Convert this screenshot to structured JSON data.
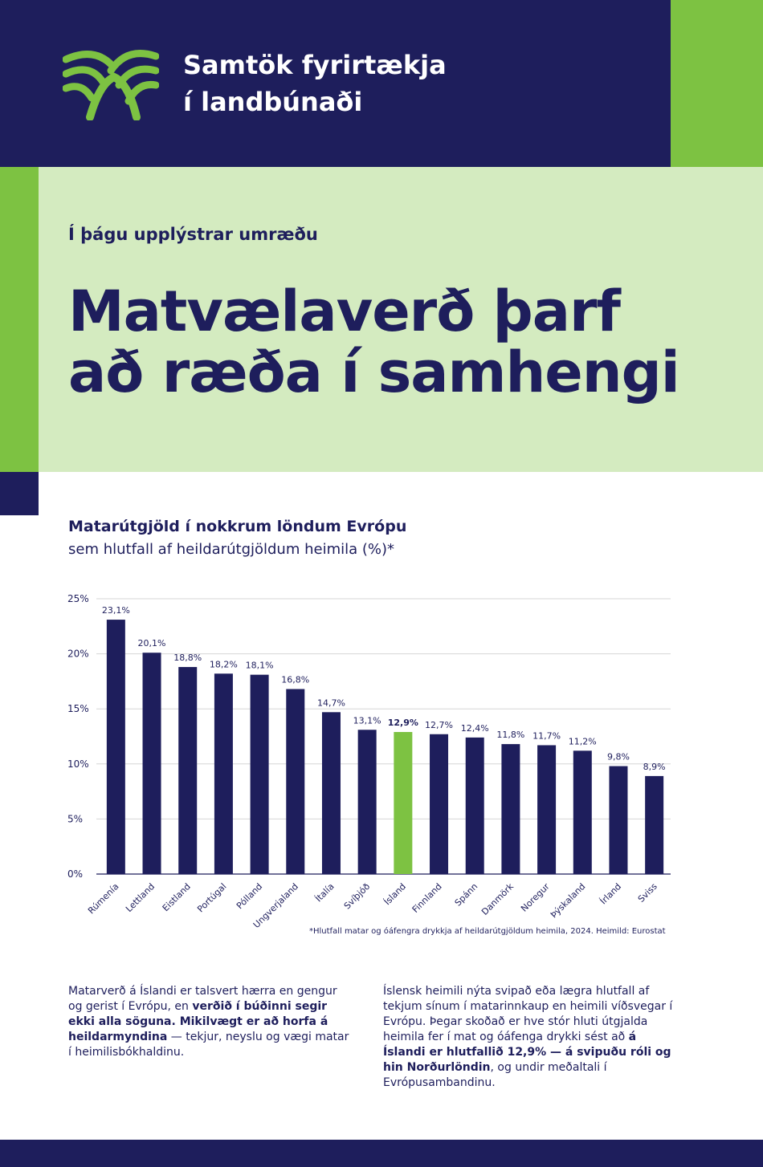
{
  "header": {
    "org_line1": "Samtök fyrirtækja",
    "org_line2": "í landbúnaði",
    "logo_icon": "wheat-field-logo-icon"
  },
  "hero": {
    "kicker": "Í þágu upplýstrar umræðu",
    "headline_line1": "Matvælaverð þarf",
    "headline_line2": "að ræða í samhengi"
  },
  "colors": {
    "navy": "#1e1e5c",
    "green": "#7dc242",
    "light_green": "#d4ebc0"
  },
  "chart_data": {
    "type": "bar",
    "title": "Matarútgjöld í nokkrum löndum Evrópu",
    "subtitle": "sem hlutfall af heildarútgjöldum heimila (%)*",
    "categories": [
      "Rúmenía",
      "Lettland",
      "Eistland",
      "Portúgal",
      "Pólland",
      "Ungverjaland",
      "Ítalía",
      "Svíþjóð",
      "Ísland",
      "Finnland",
      "Spánn",
      "Danmörk",
      "Noregur",
      "Þýskaland",
      "Írland",
      "Sviss"
    ],
    "values": [
      23.1,
      20.1,
      18.8,
      18.2,
      18.1,
      16.8,
      14.7,
      13.1,
      12.9,
      12.7,
      12.4,
      11.8,
      11.7,
      11.2,
      9.8,
      8.9
    ],
    "value_labels": [
      "23,1%",
      "20,1%",
      "18,8%",
      "18,2%",
      "18,1%",
      "16,8%",
      "14,7%",
      "13,1%",
      "12,9%",
      "12,7%",
      "12,4%",
      "11,8%",
      "11,7%",
      "11,2%",
      "9,8%",
      "8,9%"
    ],
    "highlight": "Ísland",
    "ylim": [
      0,
      25
    ],
    "yticks": [
      0,
      5,
      10,
      15,
      20,
      25
    ],
    "ytick_labels": [
      "0%",
      "5%",
      "10%",
      "15%",
      "20%",
      "25%"
    ],
    "grid": true,
    "bar_color": "#1e1e5c",
    "highlight_color": "#7dc242",
    "footnote": "*Hlutfall matar og óáfengra drykkja af heildarútgjöldum heimila, 2024. Heimild: Eurostat"
  },
  "body": {
    "left": {
      "p1": "Matarverð á Íslandi er talsvert hærra en gengur og gerist í Evrópu, en ",
      "b1": "verðið í búðinni segir ekki alla söguna. Mikilvægt er að horfa á heildarmyndina",
      "p2": " — tekjur, neyslu og vægi matar í heimilisbókhaldinu."
    },
    "right": {
      "p1": "Íslensk heimili nýta svipað eða lægra hlutfall af tekjum sínum í matarinnkaup en heimili víðsvegar í Evrópu. Þegar skoðað er hve stór hluti útgjalda heimila fer í mat og óáfenga drykki sést að ",
      "b1": "á Íslandi er hlutfallið 12,9% — á svipuðu róli og hin Norðurlöndin",
      "p2": ", og undir meðaltali í Evrópusambandinu."
    }
  }
}
